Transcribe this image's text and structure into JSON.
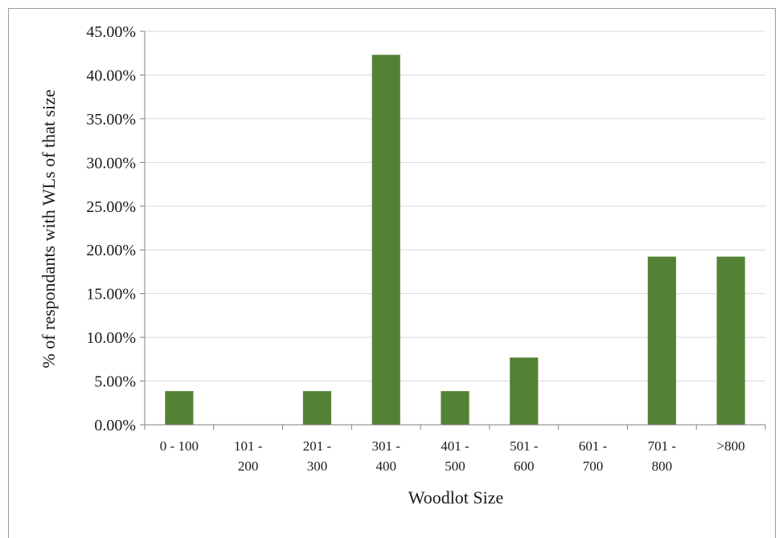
{
  "chart_data": {
    "type": "bar",
    "categories": [
      [
        "0 - 100"
      ],
      [
        "101 -",
        "200"
      ],
      [
        "201 -",
        "300"
      ],
      [
        "301 -",
        "400"
      ],
      [
        "401 -",
        "500"
      ],
      [
        "501 -",
        "600"
      ],
      [
        "601 -",
        "700"
      ],
      [
        "701 -",
        "800"
      ],
      [
        ">800"
      ]
    ],
    "values": [
      3.85,
      0,
      3.85,
      42.31,
      3.85,
      7.69,
      0,
      19.23,
      19.23
    ],
    "ylabel": "% of respondants with WLs of that size",
    "xlabel": "Woodlot Size",
    "ylim": [
      0,
      45
    ],
    "yticks": [
      0,
      5,
      10,
      15,
      20,
      25,
      30,
      35,
      40,
      45
    ],
    "ytick_labels": [
      "0.00%",
      "5.00%",
      "10.00%",
      "15.00%",
      "20.00%",
      "25.00%",
      "30.00%",
      "35.00%",
      "40.00%",
      "45.00%"
    ],
    "bar_color": "#548235",
    "grid": true,
    "legend": "none"
  }
}
